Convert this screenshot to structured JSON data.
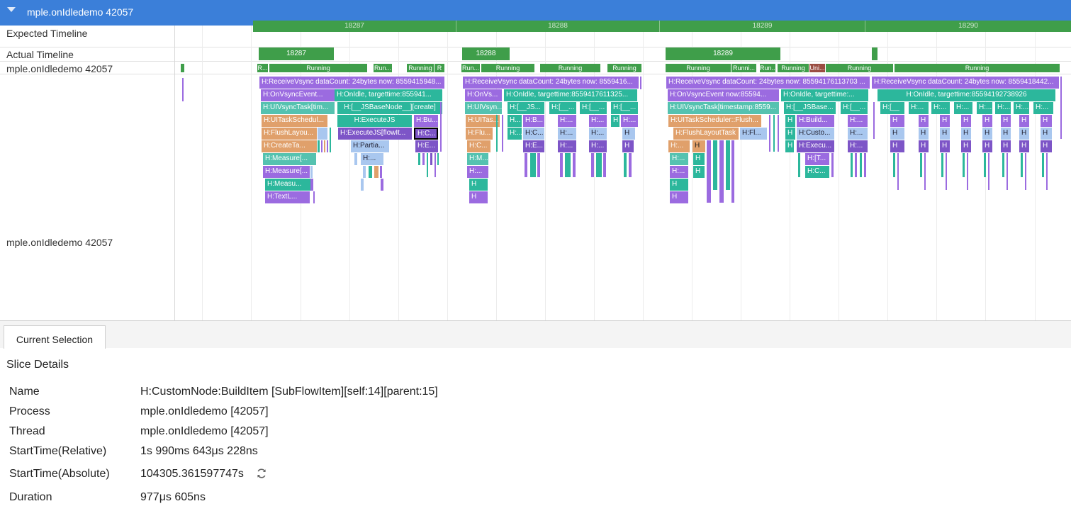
{
  "header": {
    "title": "mple.onIdledemo 42057"
  },
  "rows": {
    "expected": "Expected Timeline",
    "actual": "Actual Timeline",
    "process": "mple.onIdledemo 42057",
    "thread": "mple.onIdledemo 42057"
  },
  "expected_frames": [
    "18287",
    "18288",
    "18289",
    "18290"
  ],
  "actual_frames": [
    "18287",
    "18288",
    "18289"
  ],
  "thread_states": {
    "running": "Running",
    "running_short": "Run...",
    "r": "R",
    "running_r": "R...",
    "running_mid": "Runni...",
    "uni": "Uni..."
  },
  "slices": {
    "f1": {
      "l0": "H:ReceiveVsync dataCount: 24bytes now: 8559415948...",
      "l1a": "H:OnVsyncEvent...",
      "l1b": "H:OnIdle, targettime:855941...",
      "l2a": "H:UIVsyncTask[tim...",
      "l2b": "H:[__JSBaseNode__][create]",
      "l3a": "H:UITaskSchedul...",
      "l3b": "H:ExecuteJS",
      "l3c": "H:Bu...",
      "l4a": "H:FlushLayou...",
      "l4b": "H:ExecuteJS[flowIt...",
      "l4c": "H:C...",
      "l5a": "H:CreateTa...",
      "l5b": "H:Partia...",
      "l5c": "H:E...",
      "l6a": "H:Measure[...",
      "l6b": "H:...",
      "l7a": "H:Measure[...",
      "l8a": "H:Measu...",
      "l9a": "H:TextL..."
    },
    "f2": {
      "l0": "H:ReceiveVsync dataCount: 24bytes now: 8559416...",
      "l1a": "H:OnVs...",
      "l1b": "H:OnIdle, targettime:8559417611325...",
      "l2a": "H:UIVsyn...",
      "l2b": "H:[__JS...",
      "l2c": "H:[__...",
      "l2d": "H:[__...",
      "l2e": "H:[__...",
      "l3a": "H:UITas...",
      "l3b": "H...",
      "l3c": "H:B...",
      "l3d": "H:...",
      "l3e": "H:...",
      "l3f": "H",
      "l3g": "H:...",
      "l4a": "H:Flu...",
      "l4b": "H:...",
      "l4c": "H:C...",
      "l4d": "H:...",
      "l4e": "H:...",
      "l4f": "H",
      "l5a": "H:C...",
      "l5b": "H:E...",
      "l5c": "H:...",
      "l5d": "H:...",
      "l5e": "H",
      "l6a": "H:M...",
      "l7a": "H:...",
      "l8a": "H",
      "l9a": "H"
    },
    "f3": {
      "l0": "H:ReceiveVsync dataCount: 24bytes now: 85594176113703 ...",
      "l0b": "H:ReceiveVsync dataCount: 24bytes now: 8559418442...",
      "l1a": "H:OnVsyncEvent now:85594...",
      "l1b": "H:OnIdle, targettime:...",
      "l1c": "H:OnIdle, targettime:85594192738926",
      "l2a": "H:UIVsyncTask[timestamp:8559...",
      "l2b": "H:[__JSBase...",
      "l2c": "H:[__...",
      "l3a": "H:UITaskScheduler::Flush...",
      "l3b": "H",
      "l3c": "H:Build...",
      "l3d": "H:...",
      "l4a": "H:FlushLayoutTask",
      "l4b": "H:Fl...",
      "l4c": "H",
      "l4d": "H:Custo...",
      "l4e": "H:...",
      "l5a": "H:...",
      "l5b": "H",
      "l5c": "H",
      "l5d": "H:Execu...",
      "l5e": "H:...",
      "l6a": "H:...",
      "l6b": "H",
      "l6c": "H:[T...",
      "l7a": "H:...",
      "l7b": "H",
      "l7c": "H:C...",
      "l8a": "H",
      "l9a": "H",
      "hx": "H",
      "hs": "H:...",
      "hh": "H:[__"
    }
  },
  "panel": {
    "tab": "Current Selection",
    "title": "Slice Details",
    "details": [
      {
        "key": "Name",
        "value": "H:CustomNode:BuildItem [SubFlowItem][self:14][parent:15]"
      },
      {
        "key": "Process",
        "value": "mple.onIdledemo [42057]"
      },
      {
        "key": "Thread",
        "value": "mple.onIdledemo [42057]"
      },
      {
        "key": "StartTime(Relative)",
        "value": "1s 990ms 643μs 228ns"
      },
      {
        "key": "StartTime(Absolute)",
        "value": "104305.361597747s"
      },
      {
        "key": "Duration",
        "value": "977μs 605ns"
      }
    ],
    "refresh_icon": "refresh-icon"
  },
  "colors": {
    "header": "#3b7fd9",
    "frame_green": "#3f9e4a",
    "purple": "#9b6be0",
    "teal": "#2cb79c",
    "teal_light": "#55c2b0",
    "orange": "#e0a06b",
    "lightblue": "#a9c7ef",
    "darkpurple": "#7d55c7"
  }
}
